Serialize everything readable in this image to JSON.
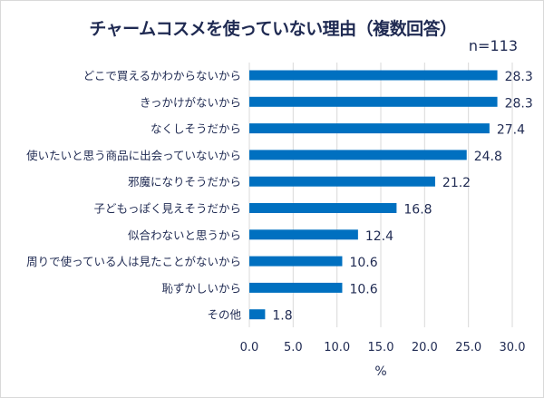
{
  "chart_data": {
    "type": "bar",
    "orientation": "horizontal",
    "title": "チャームコスメを使っていない理由（複数回答）",
    "subtitle": "n=113",
    "categories": [
      "どこで買えるかわからないから",
      "きっかけがないから",
      "なくしそうだから",
      "使いたいと思う商品に出会っていないから",
      "邪魔になりそうだから",
      "子どもっぽく見えそうだから",
      "似合わないと思うから",
      "周りで使っている人は見たことがないから",
      "恥ずかしいから",
      "その他"
    ],
    "values": [
      28.3,
      28.3,
      27.4,
      24.8,
      21.2,
      16.8,
      12.4,
      10.6,
      10.6,
      1.8
    ],
    "value_labels": [
      "28.3",
      "28.3",
      "27.4",
      "24.8",
      "21.2",
      "16.8",
      "12.4",
      "10.6",
      "10.6",
      "1.8"
    ],
    "xlabel": "%",
    "ylabel": "",
    "xlim": [
      0,
      30
    ],
    "xticks": [
      "0.0",
      "5.0",
      "10.0",
      "15.0",
      "20.0",
      "25.0",
      "30.0"
    ],
    "grid": true,
    "legend": "none",
    "bar_color": "#0070c0",
    "text_color": "#1f2a52"
  }
}
